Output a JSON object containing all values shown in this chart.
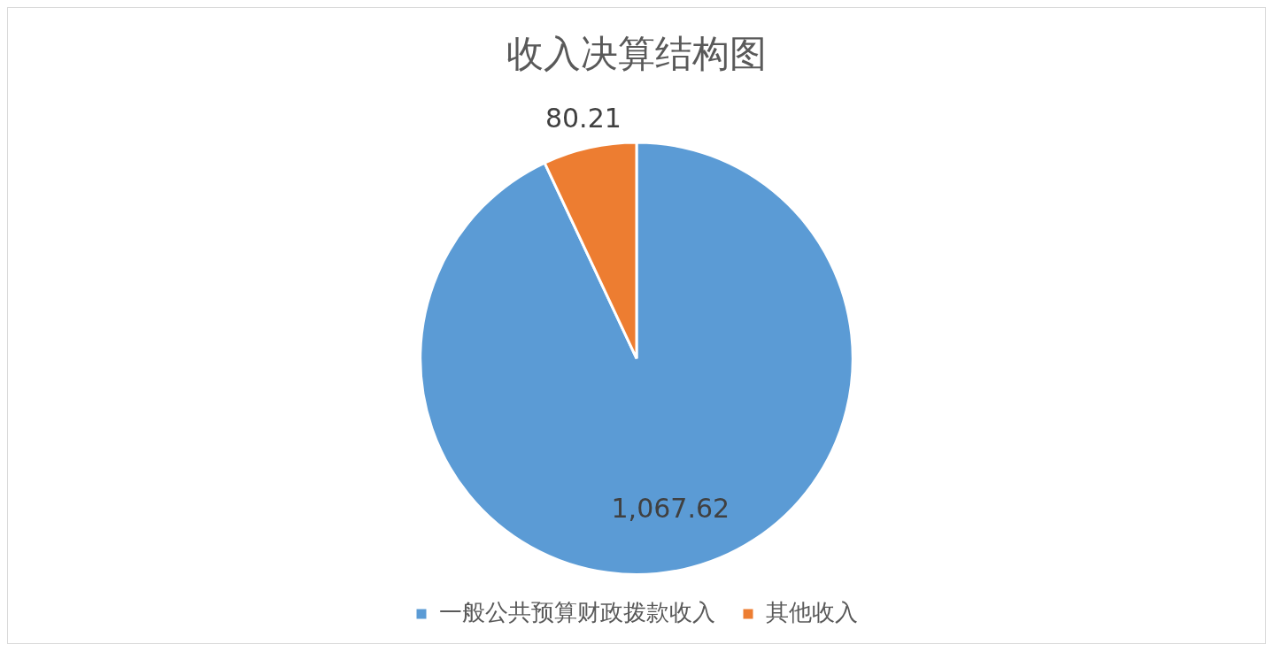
{
  "chart_data": {
    "type": "pie",
    "title": "收入决算结构图",
    "categories": [
      "一般公共预算财政拨款收入",
      "其他收入"
    ],
    "values": [
      1067.62,
      80.21
    ],
    "colors": [
      "#5b9bd5",
      "#ed7d31"
    ],
    "value_labels": [
      "1,067.62",
      "80.21"
    ],
    "legend": "bottom"
  }
}
